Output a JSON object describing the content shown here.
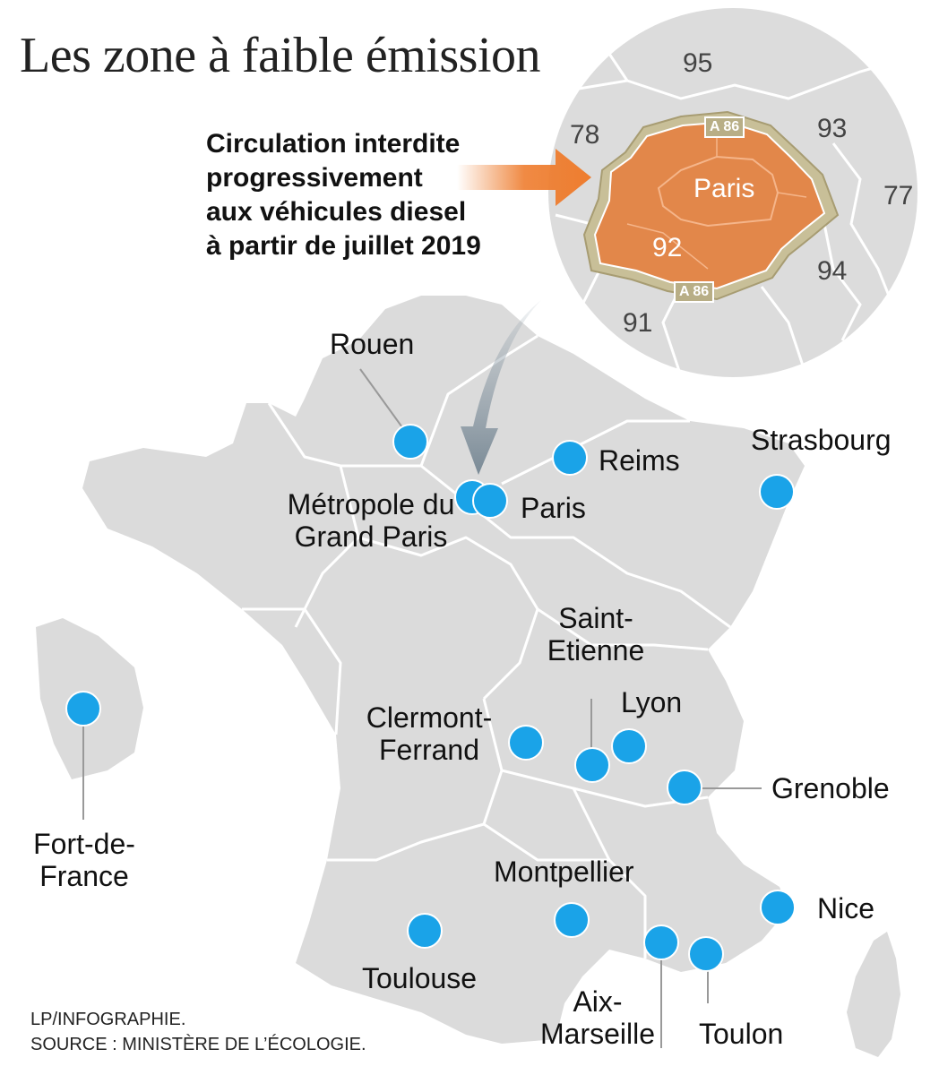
{
  "title": "Les zone à faible émission",
  "callout": {
    "lines": [
      "Circulation interdite",
      "progressivement",
      "aux véhicules diesel",
      "à partir de juillet 2019"
    ]
  },
  "inset": {
    "departments": [
      "95",
      "78",
      "93",
      "77",
      "94",
      "91"
    ],
    "center_label": "Paris",
    "inner_label": "92",
    "road_label": "A 86",
    "zone_color": "#e2874a",
    "road_color": "#c8bf98"
  },
  "cities": {
    "rouen": "Rouen",
    "reims": "Reims",
    "strasbourg": "Strasbourg",
    "metropole": [
      "Métropole du",
      "Grand Paris"
    ],
    "paris": "Paris",
    "saint_etienne": [
      "Saint-",
      "Etienne"
    ],
    "lyon": "Lyon",
    "clermont": [
      "Clermont-",
      "Ferrand"
    ],
    "grenoble": "Grenoble",
    "fort_de_france": [
      "Fort-de-",
      "France"
    ],
    "montpellier": "Montpellier",
    "nice": "Nice",
    "toulouse": "Toulouse",
    "aix_marseille": [
      "Aix-",
      "Marseille"
    ],
    "toulon": "Toulon"
  },
  "colors": {
    "land": "#dbdbdb",
    "border": "#ffffff",
    "marker": "#1aa3e8",
    "arrow": "#ee7d2f"
  },
  "source": {
    "line1": "LP/INFOGRAPHIE.",
    "line2": "SOURCE : MINISTÈRE DE L’ÉCOLOGIE."
  }
}
